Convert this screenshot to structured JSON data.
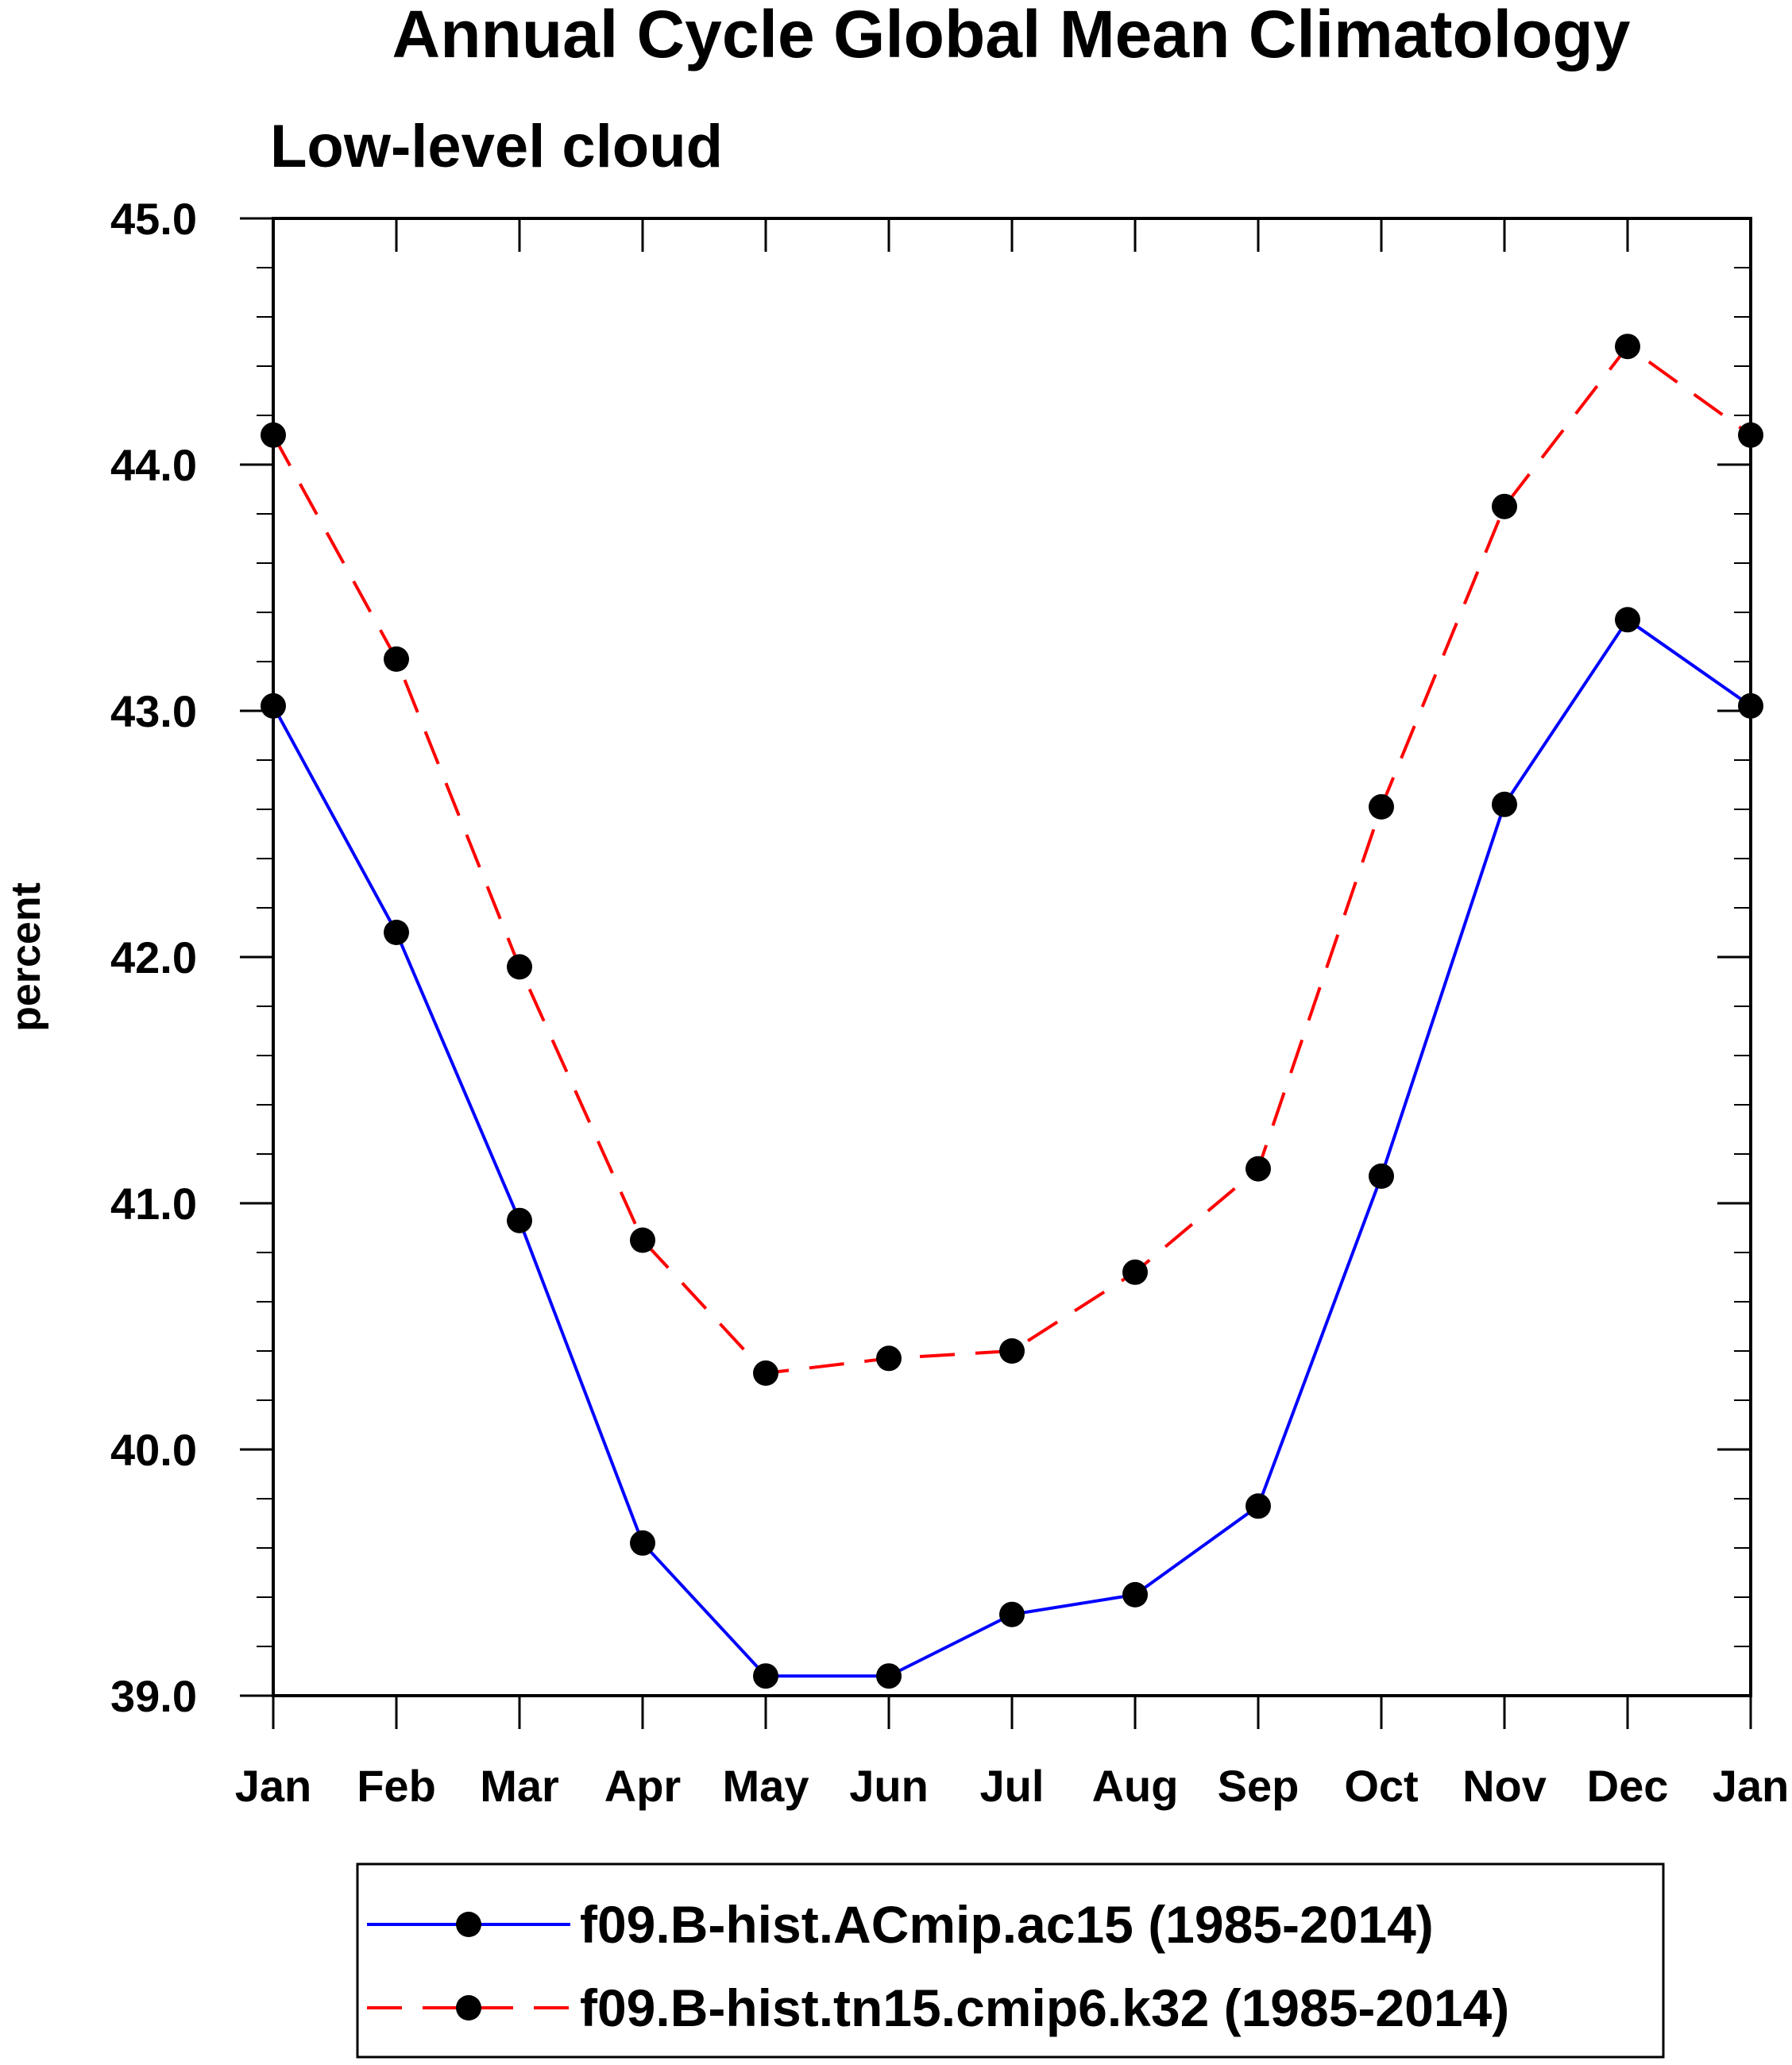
{
  "chart_data": {
    "type": "line",
    "title": "Annual Cycle Global Mean Climatology",
    "subtitle": "Low-level cloud",
    "xlabel": "",
    "ylabel": "percent",
    "categories": [
      "Jan",
      "Feb",
      "Mar",
      "Apr",
      "May",
      "Jun",
      "Jul",
      "Aug",
      "Sep",
      "Oct",
      "Nov",
      "Dec",
      "Jan"
    ],
    "ylim": [
      39.0,
      45.0
    ],
    "yticks": [
      "39.0",
      "40.0",
      "41.0",
      "42.0",
      "43.0",
      "44.0",
      "45.0"
    ],
    "grid": false,
    "legend_position": "bottom",
    "series": [
      {
        "name": "f09.B-hist.ACmip.ac15 (1985-2014)",
        "color": "#0000ff",
        "line_style": "solid",
        "marker": "filled-circle",
        "values": [
          43.02,
          42.1,
          40.93,
          39.62,
          39.08,
          39.08,
          39.33,
          39.41,
          39.77,
          41.11,
          42.62,
          43.37,
          43.02
        ]
      },
      {
        "name": "f09.B-hist.tn15.cmip6.k32 (1985-2014)",
        "color": "#ff0000",
        "line_style": "dashed",
        "marker": "filled-circle",
        "values": [
          44.12,
          43.21,
          41.96,
          40.85,
          40.31,
          40.37,
          40.4,
          40.72,
          41.14,
          42.61,
          43.83,
          44.48,
          44.12
        ]
      }
    ]
  }
}
